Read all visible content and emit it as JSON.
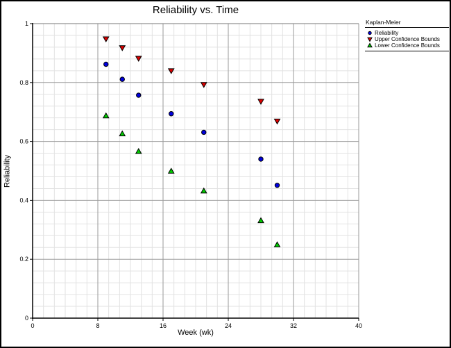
{
  "chart_data": {
    "type": "scatter",
    "title": "Reliability vs. Time",
    "xlabel": "Week (wk)",
    "ylabel": "Reliability",
    "xlim": [
      0,
      40
    ],
    "ylim": [
      0,
      1
    ],
    "x_major_ticks": [
      0,
      8,
      16,
      24,
      32,
      40
    ],
    "y_major_ticks": [
      0,
      0.2,
      0.4,
      0.6,
      0.8,
      1
    ],
    "x_minor_per_major": 6,
    "y_minor_per_major": 5,
    "grid": true,
    "legend": {
      "title": "Kaplan-Meier",
      "position": "top-right-outside"
    },
    "x": [
      9,
      11,
      13,
      17,
      21,
      28,
      30
    ],
    "series": [
      {
        "name": "Reliability",
        "marker": "circle",
        "color": "#0000dd",
        "values": [
          0.862,
          0.811,
          0.757,
          0.694,
          0.631,
          0.54,
          0.451
        ]
      },
      {
        "name": "Upper Confidence Bounds",
        "marker": "triangle-down",
        "color": "#dd0000",
        "values": [
          0.948,
          0.918,
          0.882,
          0.84,
          0.793,
          0.736,
          0.669
        ]
      },
      {
        "name": "Lower Confidence Bounds",
        "marker": "triangle-up",
        "color": "#00cc00",
        "values": [
          0.687,
          0.626,
          0.566,
          0.499,
          0.432,
          0.331,
          0.249
        ]
      }
    ],
    "colors": {
      "grid_minor": "#e2e2e2",
      "grid_major": "#9a9a9a",
      "plot_top_line": "#777777",
      "axis": "#000000",
      "marker_outline": "#000000"
    }
  }
}
